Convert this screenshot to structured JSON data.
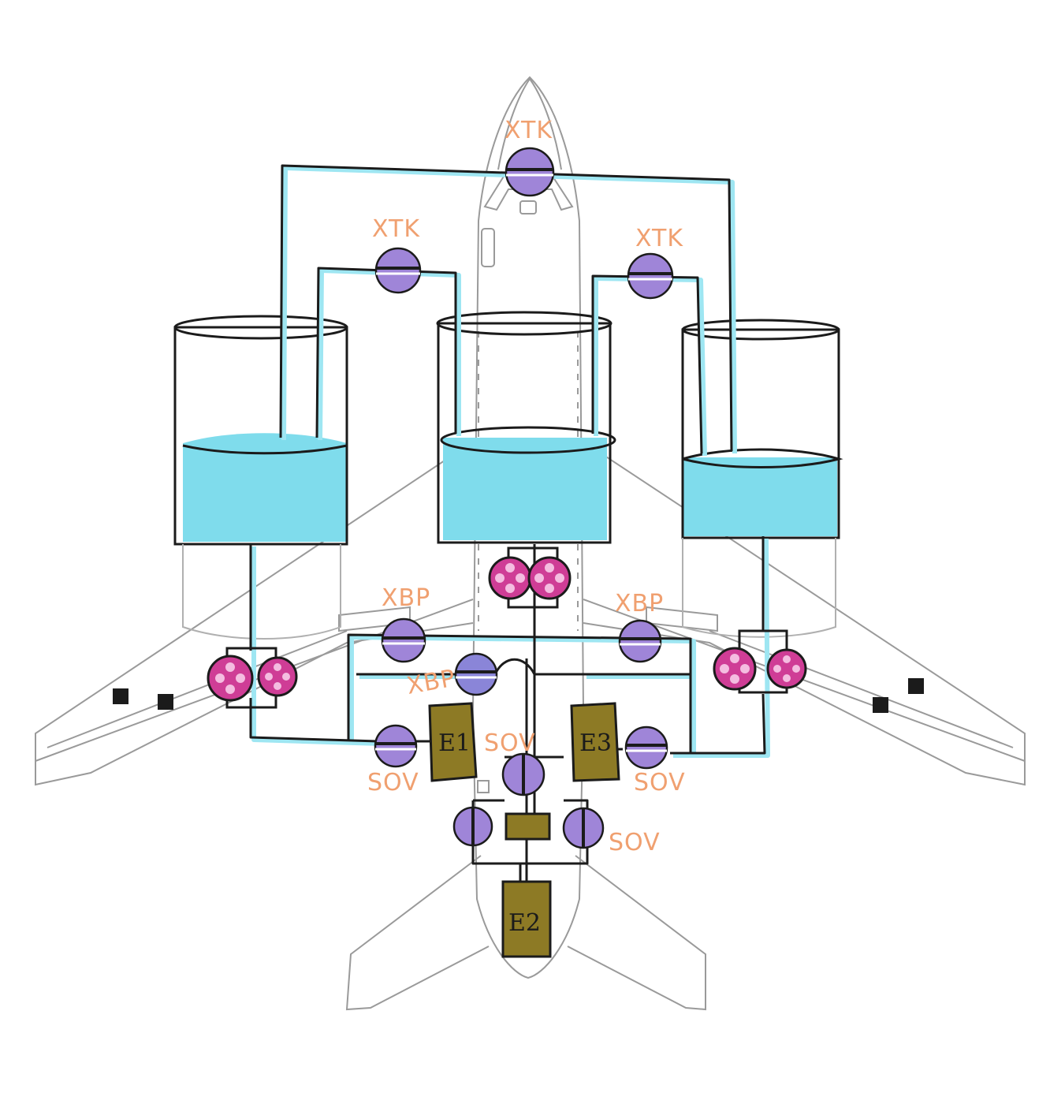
{
  "colors": {
    "fuel": "#7fdcec",
    "line": "#1b1b1b",
    "outline": "#9a9a9a",
    "valve": "#9f85d8",
    "pump": "#cf3d96",
    "engine": "#8d7a25",
    "label": "#f0a070"
  },
  "tank_levels": {
    "left": 0.47,
    "center": 0.5,
    "right": 0.43
  },
  "labels": {
    "xtk_top": "XTK",
    "xtk_left": "XTK",
    "xtk_right": "XTK",
    "xbp_left": "XBP",
    "xbp_right": "XBP",
    "xbp_center": "XBP",
    "sov_left": "SOV",
    "sov_center": "SOV",
    "sov_right": "SOV",
    "sov_lower_right": "SOV"
  },
  "engines": {
    "e1": "E1",
    "e2": "E2",
    "e3": "E3"
  },
  "icons": {
    "valve": "valve-icon",
    "pump": "pump-icon",
    "tank": "tank-icon",
    "engine": "engine-icon"
  }
}
